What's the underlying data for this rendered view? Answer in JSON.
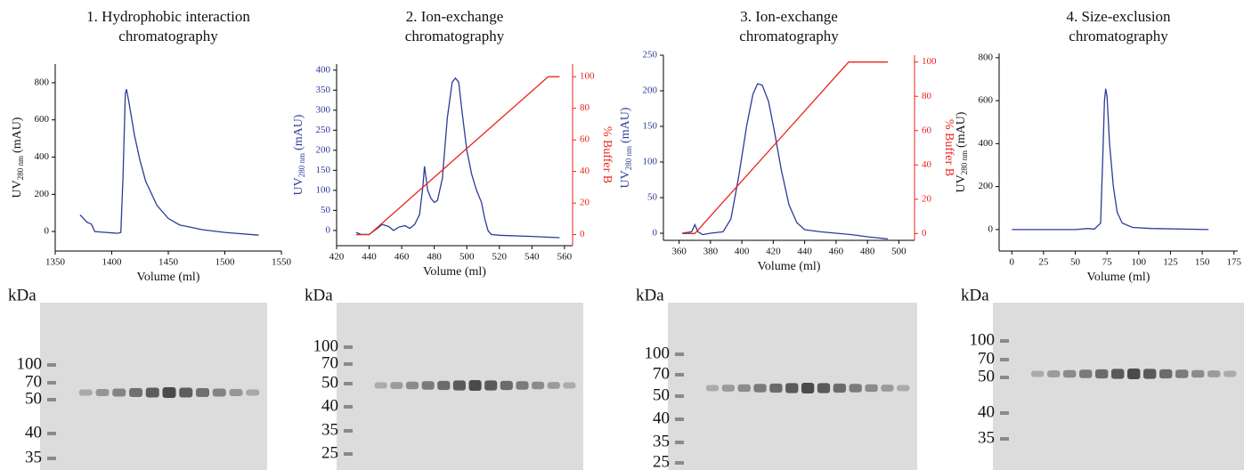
{
  "chart_data": [
    {
      "type": "line",
      "title": [
        "1. Hydrophobic interaction",
        "chromatography"
      ],
      "xlabel": "Volume (ml)",
      "ylabel": {
        "text": "UV",
        "sub": "280 nm",
        "rest": "(mAU)"
      },
      "xlim": [
        1350,
        1550
      ],
      "xticks": [
        1350,
        1400,
        1450,
        1500,
        1550
      ],
      "ylim": [
        -105,
        900
      ],
      "yticks": [
        0,
        200,
        400,
        600,
        800
      ],
      "series": [
        {
          "color": "#2e3b98",
          "x": [
            1372,
            1378,
            1382,
            1385,
            1395,
            1405,
            1408,
            1410,
            1412,
            1413,
            1415,
            1420,
            1425,
            1430,
            1440,
            1450,
            1460,
            1480,
            1500,
            1530
          ],
          "values": [
            90,
            50,
            40,
            0,
            -5,
            -10,
            -5,
            300,
            740,
            765,
            700,
            520,
            380,
            270,
            140,
            70,
            35,
            10,
            -5,
            -20
          ]
        }
      ],
      "gel": {
        "unit": "kDa",
        "markers": [
          100,
          70,
          50,
          40,
          35
        ]
      }
    },
    {
      "type": "line",
      "title": [
        "2. Ion-exchange",
        "chromatography"
      ],
      "xlabel": "Volume (ml)",
      "ylabel": {
        "text": "UV",
        "sub": "280 nm",
        "rest": "(mAU)"
      },
      "y2label": "% Buffer B",
      "xlim": [
        420,
        565
      ],
      "xticks": [
        420,
        440,
        460,
        480,
        500,
        520,
        540,
        560
      ],
      "ylim": [
        -38,
        415
      ],
      "yticks": [
        0,
        50,
        100,
        150,
        200,
        250,
        300,
        350,
        400
      ],
      "y2lim": [
        -7,
        108
      ],
      "y2ticks": [
        0,
        20,
        40,
        60,
        80,
        100
      ],
      "series": [
        {
          "color": "#2e3b98",
          "x": [
            432,
            435,
            440,
            445,
            448,
            452,
            455,
            458,
            462,
            465,
            468,
            471,
            473,
            474,
            476,
            478,
            480,
            482,
            485,
            488,
            491,
            493,
            495,
            497,
            500,
            503,
            506,
            509,
            511,
            513,
            515,
            520,
            540,
            557
          ],
          "values": [
            -5,
            -10,
            -10,
            5,
            15,
            10,
            0,
            8,
            12,
            5,
            15,
            40,
            110,
            160,
            100,
            80,
            70,
            75,
            130,
            280,
            370,
            380,
            370,
            300,
            200,
            140,
            100,
            70,
            30,
            0,
            -10,
            -12,
            -15,
            -18
          ]
        },
        {
          "color": "#e8241c",
          "axis": "y2",
          "x": [
            432,
            440,
            550,
            557
          ],
          "values": [
            0,
            0,
            100,
            100
          ]
        }
      ],
      "gel": {
        "unit": "kDa",
        "markers": [
          100,
          70,
          50,
          40,
          35,
          25
        ]
      }
    },
    {
      "type": "line",
      "title": [
        "3. Ion-exchange",
        "chromatography"
      ],
      "xlabel": "Volume (ml)",
      "ylabel": {
        "text": "UV",
        "sub": "280 nm",
        "rest": "(mAU)"
      },
      "y2label": "% Buffer B",
      "xlim": [
        350,
        510
      ],
      "xticks": [
        360,
        380,
        400,
        420,
        440,
        460,
        480,
        500
      ],
      "ylim": [
        -10,
        250
      ],
      "yticks": [
        0,
        50,
        100,
        150,
        200,
        250
      ],
      "y2lim": [
        -4,
        104
      ],
      "y2ticks": [
        0,
        20,
        40,
        60,
        80,
        100
      ],
      "series": [
        {
          "color": "#2e3b98",
          "x": [
            362,
            368,
            370,
            372,
            375,
            380,
            388,
            393,
            398,
            403,
            407,
            410,
            413,
            417,
            421,
            425,
            430,
            435,
            440,
            450,
            470,
            480,
            493
          ],
          "values": [
            0,
            2,
            12,
            2,
            -2,
            0,
            2,
            20,
            80,
            150,
            195,
            210,
            208,
            185,
            140,
            90,
            40,
            15,
            5,
            2,
            -2,
            -5,
            -8
          ]
        },
        {
          "color": "#e8241c",
          "axis": "y2",
          "x": [
            362,
            370,
            468,
            493
          ],
          "values": [
            0,
            0,
            100,
            100
          ]
        }
      ],
      "gel": {
        "unit": "kDa",
        "markers": [
          100,
          70,
          50,
          40,
          35,
          25
        ]
      }
    },
    {
      "type": "line",
      "title": [
        "4. Size-exclusion",
        "chromatography"
      ],
      "xlabel": "Volume (ml)",
      "ylabel": {
        "text": "UV",
        "sub": "280 nm",
        "rest": "(mAU)"
      },
      "xlim": [
        -10,
        178
      ],
      "xticks": [
        0,
        25,
        50,
        75,
        100,
        125,
        150,
        175
      ],
      "ylim": [
        -100,
        820
      ],
      "yticks": [
        0,
        200,
        400,
        600,
        800
      ],
      "series": [
        {
          "color": "#2e3b98",
          "x": [
            0,
            50,
            60,
            65,
            70,
            72,
            73,
            74,
            75,
            77,
            80,
            83,
            87,
            95,
            110,
            155
          ],
          "values": [
            0,
            0,
            5,
            2,
            30,
            400,
            600,
            655,
            620,
            400,
            200,
            80,
            30,
            10,
            5,
            0
          ]
        }
      ],
      "gel": {
        "unit": "kDa",
        "markers": [
          100,
          70,
          50,
          40,
          35
        ]
      }
    }
  ]
}
